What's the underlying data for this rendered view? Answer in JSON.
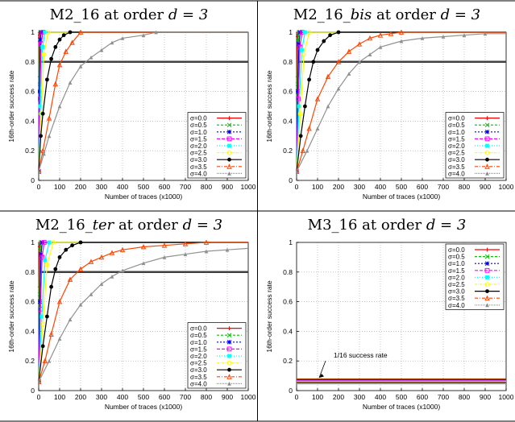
{
  "colors": {
    "sigma_0.0": "#ff0000",
    "sigma_0.5": "#00c000",
    "sigma_1.0": "#0000ff",
    "sigma_1.5": "#ff00ff",
    "sigma_2.0": "#00ffff",
    "sigma_2.5": "#ffff00",
    "sigma_3.0": "#000000",
    "sigma_3.5": "#ff4500",
    "sigma_4.0": "#909090",
    "threshold_line": "#404040",
    "grid": "#a0a0a0"
  },
  "chart_data": [
    {
      "type": "line",
      "title_text": "M2_16 at order ",
      "title_math": "d = 3",
      "xlabel": "Number of traces (x1000)",
      "ylabel": "16th-order success rate",
      "xlim": [
        0,
        1000
      ],
      "ylim": [
        0,
        1
      ],
      "x_ticks": [
        0,
        100,
        200,
        300,
        400,
        500,
        600,
        700,
        800,
        900,
        1000
      ],
      "y_ticks": [
        0,
        0.2,
        0.4,
        0.6,
        0.8,
        1
      ],
      "grid": true,
      "legend_position": "bottom-right",
      "reference_line": 0.8,
      "series": [
        {
          "name": "σ=0.0",
          "x": [
            0,
            1,
            2,
            3,
            1000
          ],
          "y": [
            0.06,
            0.7,
            0.98,
            1,
            1
          ]
        },
        {
          "name": "σ=0.5",
          "x": [
            0,
            2,
            5,
            8,
            1000
          ],
          "y": [
            0.06,
            0.65,
            0.95,
            1,
            1
          ]
        },
        {
          "name": "σ=1.0",
          "x": [
            0,
            3,
            8,
            12,
            1000
          ],
          "y": [
            0.06,
            0.6,
            0.95,
            1,
            1
          ]
        },
        {
          "name": "σ=1.5",
          "x": [
            0,
            5,
            12,
            20,
            1000
          ],
          "y": [
            0.06,
            0.55,
            0.92,
            1,
            1
          ]
        },
        {
          "name": "σ=2.0",
          "x": [
            0,
            8,
            18,
            30,
            1000
          ],
          "y": [
            0.06,
            0.5,
            0.9,
            1,
            1
          ]
        },
        {
          "name": "σ=2.5",
          "x": [
            0,
            12,
            25,
            45,
            1000
          ],
          "y": [
            0.06,
            0.45,
            0.85,
            1,
            1
          ]
        },
        {
          "name": "σ=3.0",
          "x": [
            0,
            10,
            20,
            40,
            60,
            80,
            100,
            120,
            150,
            1000
          ],
          "y": [
            0.06,
            0.3,
            0.45,
            0.68,
            0.82,
            0.9,
            0.95,
            0.98,
            1,
            1
          ]
        },
        {
          "name": "σ=3.5",
          "x": [
            0,
            20,
            50,
            80,
            100,
            130,
            160,
            200,
            1000
          ],
          "y": [
            0.06,
            0.2,
            0.42,
            0.65,
            0.78,
            0.87,
            0.93,
            1,
            1
          ]
        },
        {
          "name": "σ=4.0",
          "x": [
            0,
            25,
            50,
            100,
            150,
            200,
            250,
            300,
            350,
            400,
            500,
            560,
            1000
          ],
          "y": [
            0.06,
            0.18,
            0.3,
            0.5,
            0.66,
            0.77,
            0.83,
            0.88,
            0.93,
            0.96,
            0.98,
            1,
            1
          ]
        }
      ]
    },
    {
      "type": "line",
      "title_text": "M2_16",
      "title_italic": "_bis",
      "title_text2": " at order ",
      "title_math": "d = 3",
      "xlabel": "Number of traces (x1000)",
      "ylabel": "16th-order success rate",
      "xlim": [
        0,
        1000
      ],
      "ylim": [
        0,
        1
      ],
      "x_ticks": [
        0,
        100,
        200,
        300,
        400,
        500,
        600,
        700,
        800,
        900,
        1000
      ],
      "y_ticks": [
        0,
        0.2,
        0.4,
        0.6,
        0.8,
        1
      ],
      "grid": true,
      "legend_position": "bottom-right",
      "reference_line": 0.8,
      "series": [
        {
          "name": "σ=0.0",
          "x": [
            0,
            2,
            4,
            6,
            1000
          ],
          "y": [
            0.06,
            0.7,
            0.97,
            1,
            1
          ]
        },
        {
          "name": "σ=0.5",
          "x": [
            0,
            3,
            7,
            11,
            1000
          ],
          "y": [
            0.06,
            0.65,
            0.95,
            1,
            1
          ]
        },
        {
          "name": "σ=1.0",
          "x": [
            0,
            5,
            11,
            17,
            1000
          ],
          "y": [
            0.06,
            0.6,
            0.92,
            1,
            1
          ]
        },
        {
          "name": "σ=1.5",
          "x": [
            0,
            8,
            16,
            26,
            1000
          ],
          "y": [
            0.06,
            0.55,
            0.9,
            1,
            1
          ]
        },
        {
          "name": "σ=2.0",
          "x": [
            0,
            12,
            25,
            40,
            1000
          ],
          "y": [
            0.06,
            0.5,
            0.88,
            1,
            1
          ]
        },
        {
          "name": "σ=2.5",
          "x": [
            0,
            18,
            35,
            60,
            1000
          ],
          "y": [
            0.06,
            0.45,
            0.85,
            1,
            1
          ]
        },
        {
          "name": "σ=3.0",
          "x": [
            0,
            20,
            40,
            60,
            80,
            100,
            130,
            160,
            200,
            1000
          ],
          "y": [
            0.06,
            0.3,
            0.5,
            0.68,
            0.8,
            0.88,
            0.94,
            0.98,
            1,
            1
          ]
        },
        {
          "name": "σ=3.5",
          "x": [
            0,
            30,
            60,
            100,
            150,
            200,
            250,
            300,
            350,
            400,
            450,
            500,
            1000
          ],
          "y": [
            0.06,
            0.2,
            0.35,
            0.55,
            0.7,
            0.8,
            0.87,
            0.92,
            0.96,
            0.98,
            0.99,
            1,
            1
          ]
        },
        {
          "name": "σ=4.0",
          "x": [
            0,
            50,
            100,
            150,
            200,
            250,
            300,
            350,
            400,
            500,
            600,
            700,
            800,
            900,
            1000
          ],
          "y": [
            0.06,
            0.2,
            0.35,
            0.5,
            0.62,
            0.72,
            0.8,
            0.85,
            0.9,
            0.94,
            0.96,
            0.97,
            0.98,
            0.99,
            0.99
          ]
        }
      ]
    },
    {
      "type": "line",
      "title_text": "M2_16",
      "title_italic": "_ter",
      "title_text2": " at order ",
      "title_math": "d = 3",
      "xlabel": "Number of traces (x1000)",
      "ylabel": "16th-order success rate",
      "xlim": [
        0,
        1000
      ],
      "ylim": [
        0,
        1
      ],
      "x_ticks": [
        0,
        100,
        200,
        300,
        400,
        500,
        600,
        700,
        800,
        900,
        1000
      ],
      "y_ticks": [
        0,
        0.2,
        0.4,
        0.6,
        0.8,
        1
      ],
      "grid": true,
      "legend_position": "bottom-right",
      "reference_line": 0.8,
      "series": [
        {
          "name": "σ=0.0",
          "x": [
            0,
            2,
            4,
            6,
            1000
          ],
          "y": [
            0.06,
            0.7,
            0.97,
            1,
            1
          ]
        },
        {
          "name": "σ=0.5",
          "x": [
            0,
            3,
            7,
            11,
            1000
          ],
          "y": [
            0.06,
            0.65,
            0.95,
            1,
            1
          ]
        },
        {
          "name": "σ=1.0",
          "x": [
            0,
            5,
            11,
            17,
            1000
          ],
          "y": [
            0.06,
            0.6,
            0.92,
            1,
            1
          ]
        },
        {
          "name": "σ=1.5",
          "x": [
            0,
            8,
            16,
            26,
            1000
          ],
          "y": [
            0.06,
            0.55,
            0.9,
            1,
            1
          ]
        },
        {
          "name": "σ=2.0",
          "x": [
            0,
            15,
            30,
            50,
            1000
          ],
          "y": [
            0.06,
            0.5,
            0.88,
            1,
            1
          ]
        },
        {
          "name": "σ=2.5",
          "x": [
            0,
            20,
            40,
            70,
            1000
          ],
          "y": [
            0.06,
            0.45,
            0.85,
            1,
            1
          ]
        },
        {
          "name": "σ=3.0",
          "x": [
            0,
            20,
            40,
            60,
            80,
            100,
            130,
            160,
            200,
            1000
          ],
          "y": [
            0.06,
            0.3,
            0.5,
            0.7,
            0.82,
            0.9,
            0.95,
            0.98,
            1,
            1
          ]
        },
        {
          "name": "σ=3.5",
          "x": [
            0,
            30,
            60,
            100,
            150,
            200,
            250,
            300,
            350,
            400,
            500,
            600,
            700,
            800,
            1000
          ],
          "y": [
            0.06,
            0.2,
            0.38,
            0.6,
            0.75,
            0.82,
            0.87,
            0.9,
            0.93,
            0.95,
            0.97,
            0.98,
            0.99,
            1,
            1
          ]
        },
        {
          "name": "σ=4.0",
          "x": [
            0,
            50,
            100,
            150,
            200,
            250,
            300,
            350,
            400,
            500,
            600,
            700,
            800,
            900,
            1000
          ],
          "y": [
            0.06,
            0.2,
            0.35,
            0.48,
            0.58,
            0.65,
            0.72,
            0.77,
            0.81,
            0.86,
            0.9,
            0.92,
            0.94,
            0.95,
            0.96
          ]
        }
      ]
    },
    {
      "type": "line",
      "title_text": "M3_16 at order ",
      "title_math": "d = 3",
      "xlabel": "Number of traces (x1000)",
      "ylabel": "16th-order success rate",
      "xlim": [
        0,
        1000
      ],
      "ylim": [
        0,
        1
      ],
      "x_ticks": [
        0,
        100,
        200,
        300,
        400,
        500,
        600,
        700,
        800,
        900,
        1000
      ],
      "y_ticks": [
        0,
        0.2,
        0.4,
        0.6,
        0.8,
        1
      ],
      "grid": true,
      "legend_position": "top-right",
      "annotation": {
        "text": "1/16 success rate",
        "x": 100,
        "y": 0.06
      },
      "series": [
        {
          "name": "σ=0.0",
          "x": [
            0,
            1000
          ],
          "y": [
            0.0625,
            0.0625
          ]
        },
        {
          "name": "σ=0.5",
          "x": [
            0,
            1000
          ],
          "y": [
            0.0625,
            0.0625
          ]
        },
        {
          "name": "σ=1.0",
          "x": [
            0,
            1000
          ],
          "y": [
            0.0625,
            0.0625
          ]
        },
        {
          "name": "σ=1.5",
          "x": [
            0,
            1000
          ],
          "y": [
            0.0625,
            0.0625
          ]
        },
        {
          "name": "σ=2.0",
          "x": [
            0,
            1000
          ],
          "y": [
            0.0625,
            0.0625
          ]
        },
        {
          "name": "σ=2.5",
          "x": [
            0,
            1000
          ],
          "y": [
            0.0625,
            0.0625
          ]
        },
        {
          "name": "σ=3.0",
          "x": [
            0,
            1000
          ],
          "y": [
            0.0625,
            0.0625
          ]
        },
        {
          "name": "σ=3.5",
          "x": [
            0,
            1000
          ],
          "y": [
            0.0625,
            0.0625
          ]
        },
        {
          "name": "σ=4.0",
          "x": [
            0,
            1000
          ],
          "y": [
            0.0625,
            0.0625
          ]
        }
      ]
    }
  ]
}
